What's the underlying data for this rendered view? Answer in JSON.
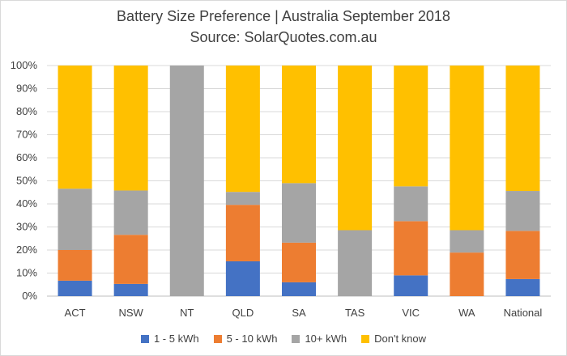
{
  "chart_data": {
    "type": "bar",
    "stacked": true,
    "title": "Battery Size Preference  | Australia September 2018",
    "subtitle": "Source: SolarQuotes.com.au",
    "categories": [
      "ACT",
      "NSW",
      "NT",
      "QLD",
      "SA",
      "TAS",
      "VIC",
      "WA",
      "National"
    ],
    "series": [
      {
        "name": "1 - 5 kWh",
        "color": "#4472c4",
        "values": [
          6.7,
          5.3,
          0,
          15.1,
          6.0,
          0,
          9.0,
          0,
          7.4
        ]
      },
      {
        "name": "5 - 10 kWh",
        "color": "#ed7d31",
        "values": [
          13.3,
          21.3,
          0,
          24.5,
          17.2,
          0,
          23.5,
          18.9,
          20.9
        ]
      },
      {
        "name": "10+ kWh",
        "color": "#a5a5a5",
        "values": [
          26.6,
          19.2,
          100,
          5.6,
          25.8,
          28.6,
          15.1,
          9.7,
          17.3
        ]
      },
      {
        "name": "Don't know",
        "color": "#ffc000",
        "values": [
          53.4,
          54.2,
          0,
          54.8,
          51.0,
          71.4,
          52.4,
          71.4,
          54.4
        ]
      }
    ],
    "ylim": [
      0,
      100
    ],
    "yticks": [
      "0%",
      "10%",
      "20%",
      "30%",
      "40%",
      "50%",
      "60%",
      "70%",
      "80%",
      "90%",
      "100%"
    ],
    "grid": true,
    "legend_position": "bottom"
  }
}
